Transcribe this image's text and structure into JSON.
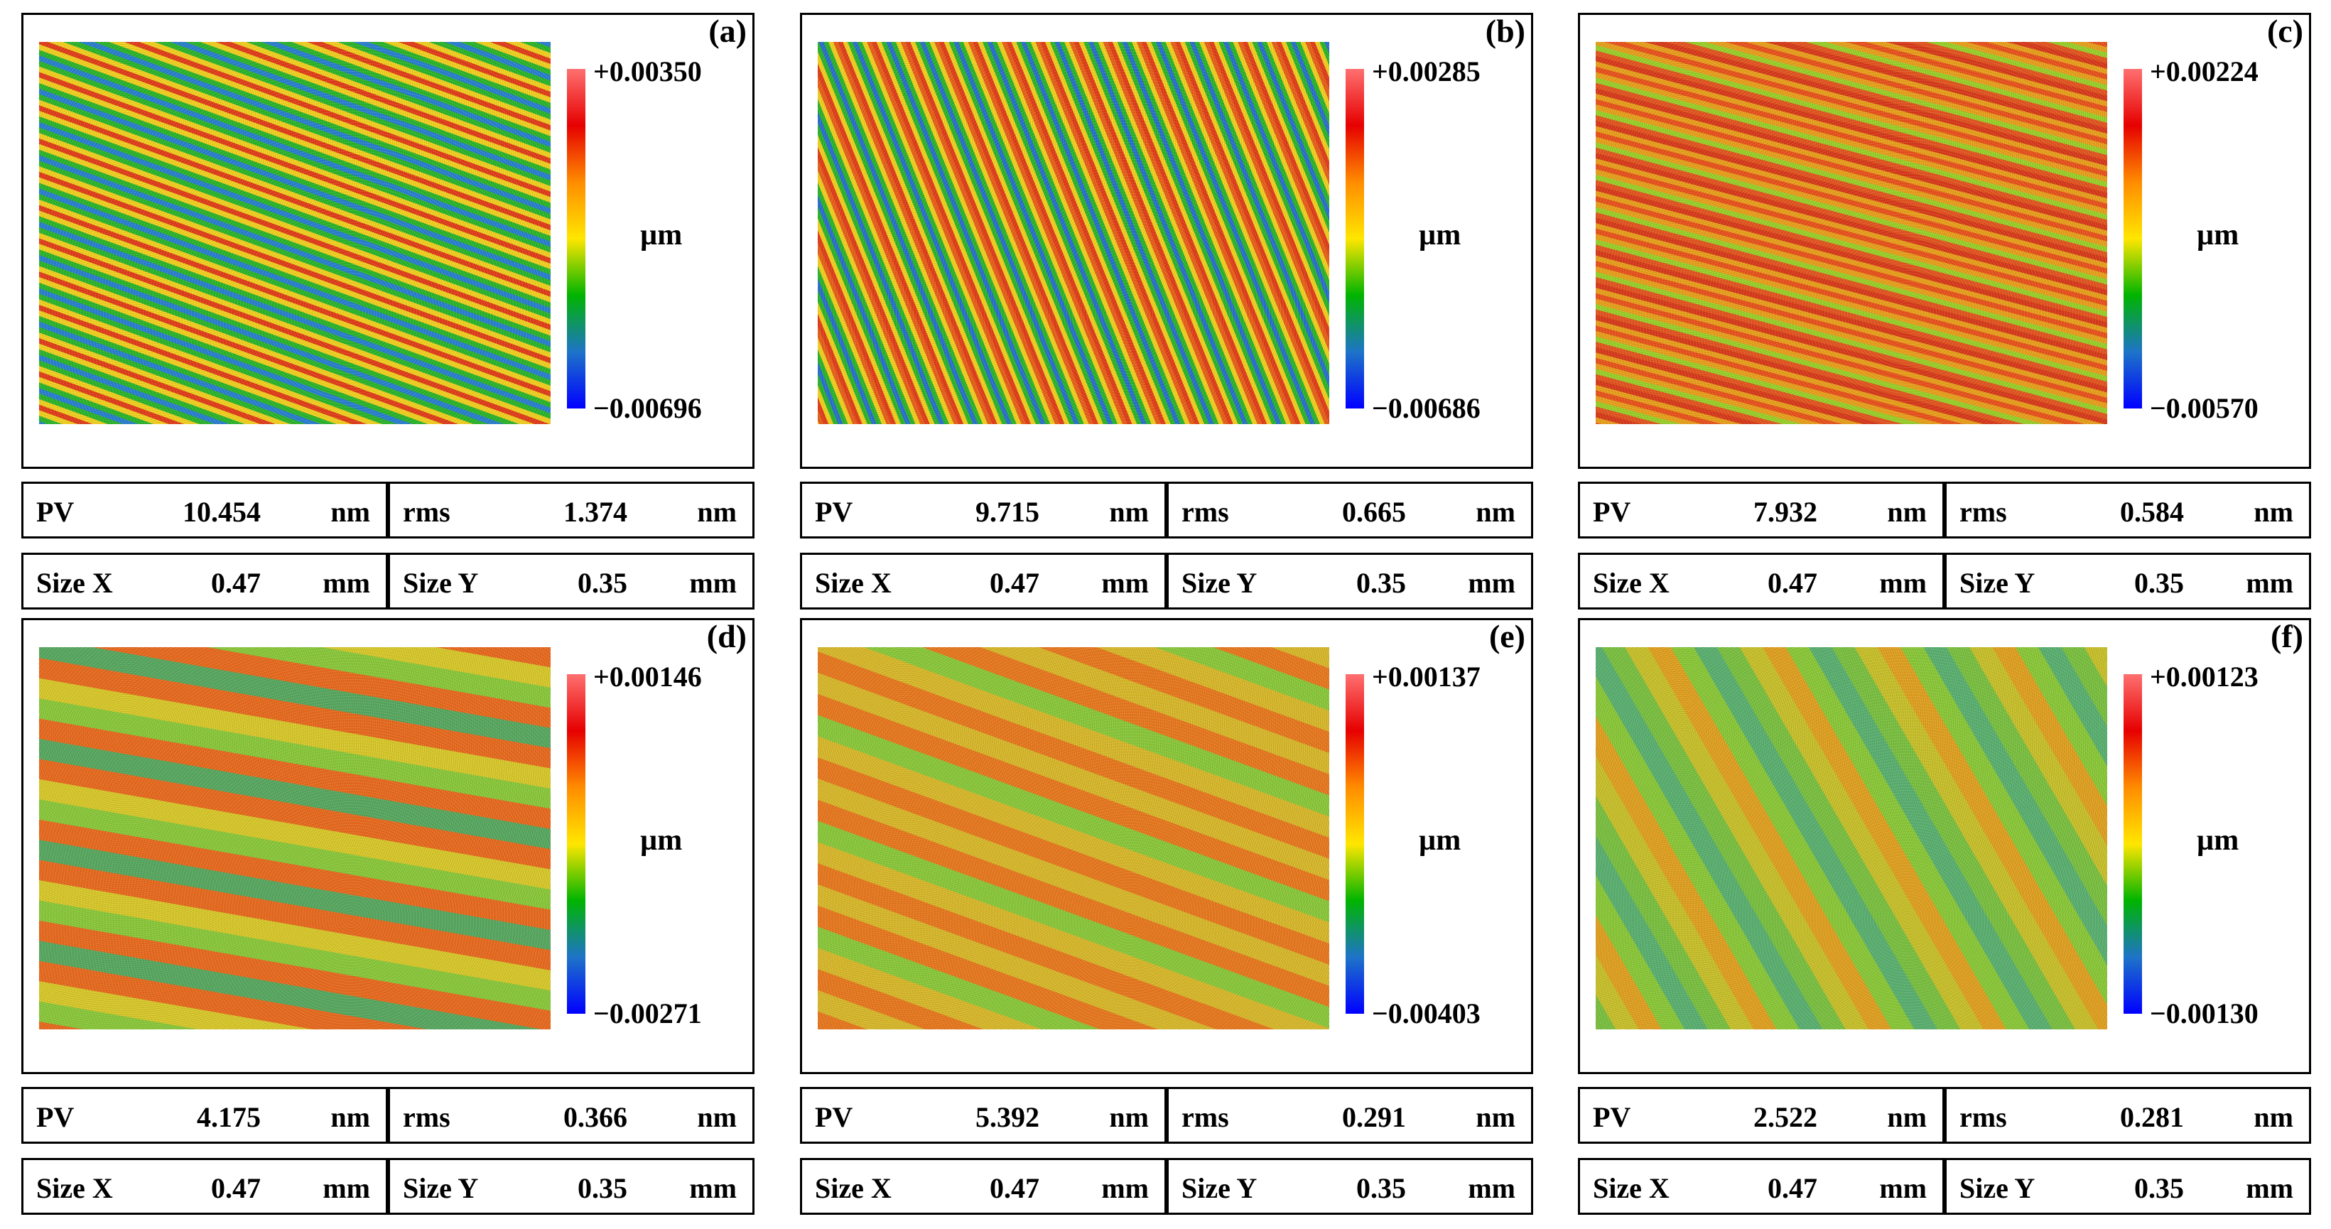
{
  "colorbar": {
    "stops": [
      "#0000ff",
      "#1e74c8",
      "#00b400",
      "#ffe600",
      "#ff8c00",
      "#e60000",
      "#ff7070"
    ]
  },
  "panels": [
    {
      "id": "a",
      "label": "(a)",
      "max": "+0.00350",
      "min": "−0.00696",
      "unit": "µm",
      "map": {
        "pattern": "stripes",
        "colors": [
          "#2a7fd0",
          "#2bb52b",
          "#f2d020",
          "#e13d1a",
          "#f2d020",
          "#2bb52b"
        ],
        "angle": -160
      },
      "stats": {
        "pv_label": "PV",
        "pv_value": "10.454",
        "pv_unit": "nm",
        "rms_label": "rms",
        "rms_value": "1.374",
        "rms_unit": "nm",
        "sizex_label": "Size X",
        "sizex_value": "0.47",
        "sizex_unit": "mm",
        "sizey_label": "Size Y",
        "sizey_value": "0.35",
        "sizey_unit": "mm"
      }
    },
    {
      "id": "b",
      "label": "(b)",
      "max": "+0.00285",
      "min": "−0.00686",
      "unit": "µm",
      "map": {
        "pattern": "stripes",
        "colors": [
          "#2a6fd0",
          "#2bb52b",
          "#f2d020",
          "#e13d1a",
          "#e8601a",
          "#f2d020",
          "#2bb52b"
        ],
        "angle": -112
      },
      "stats": {
        "pv_label": "PV",
        "pv_value": "9.715",
        "pv_unit": "nm",
        "rms_label": "rms",
        "rms_value": "0.665",
        "rms_unit": "nm",
        "sizex_label": "Size X",
        "sizex_value": "0.47",
        "sizex_unit": "mm",
        "sizey_label": "Size Y",
        "sizey_value": "0.35",
        "sizey_unit": "mm"
      }
    },
    {
      "id": "c",
      "label": "(c)",
      "max": "+0.00224",
      "min": "−0.00570",
      "unit": "µm",
      "map": {
        "pattern": "stripes",
        "colors": [
          "#e9521c",
          "#e9a01c",
          "#9ad02a",
          "#e45520",
          "#d83a1a",
          "#e9a01c"
        ],
        "angle": -165
      },
      "stats": {
        "pv_label": "PV",
        "pv_value": "7.932",
        "pv_unit": "nm",
        "rms_label": "rms",
        "rms_value": "0.584",
        "rms_unit": "nm",
        "sizex_label": "Size X",
        "sizex_value": "0.47",
        "sizex_unit": "mm",
        "sizey_label": "Size Y",
        "sizey_value": "0.35",
        "sizey_unit": "mm"
      }
    },
    {
      "id": "d",
      "label": "(d)",
      "max": "+0.00146",
      "min": "−0.00271",
      "unit": "µm",
      "map": {
        "pattern": "noise",
        "colors": [
          "#e86a1e",
          "#d8c82a",
          "#8ac83a",
          "#e86a1e",
          "#58a860"
        ],
        "angle": -170
      },
      "stats": {
        "pv_label": "PV",
        "pv_value": "4.175",
        "pv_unit": "nm",
        "rms_label": "rms",
        "rms_value": "0.366",
        "rms_unit": "nm",
        "sizex_label": "Size X",
        "sizex_value": "0.47",
        "sizex_unit": "mm",
        "sizey_label": "Size Y",
        "sizey_value": "0.35",
        "sizey_unit": "mm"
      }
    },
    {
      "id": "e",
      "label": "(e)",
      "max": "+0.00137",
      "min": "−0.00403",
      "unit": "µm",
      "map": {
        "pattern": "noise",
        "colors": [
          "#d8b82a",
          "#e8781e",
          "#8ac83a",
          "#d8b82a",
          "#e8781e"
        ],
        "angle": -160
      },
      "stats": {
        "pv_label": "PV",
        "pv_value": "5.392",
        "pv_unit": "nm",
        "rms_label": "rms",
        "rms_value": "0.291",
        "rms_unit": "nm",
        "sizex_label": "Size X",
        "sizex_value": "0.47",
        "sizex_unit": "mm",
        "sizey_label": "Size Y",
        "sizey_value": "0.35",
        "sizey_unit": "mm"
      }
    },
    {
      "id": "f",
      "label": "(f)",
      "max": "+0.00123",
      "min": "−0.00130",
      "unit": "µm",
      "map": {
        "pattern": "noise",
        "colors": [
          "#c8c02a",
          "#7ac040",
          "#5ab070",
          "#8ac838",
          "#e0a020"
        ],
        "angle": -120
      },
      "stats": {
        "pv_label": "PV",
        "pv_value": "2.522",
        "pv_unit": "nm",
        "rms_label": "rms",
        "rms_value": "0.281",
        "rms_unit": "nm",
        "sizex_label": "Size X",
        "sizex_value": "0.47",
        "sizex_unit": "mm",
        "sizey_label": "Size Y",
        "sizey_value": "0.35",
        "sizey_unit": "mm"
      }
    }
  ]
}
